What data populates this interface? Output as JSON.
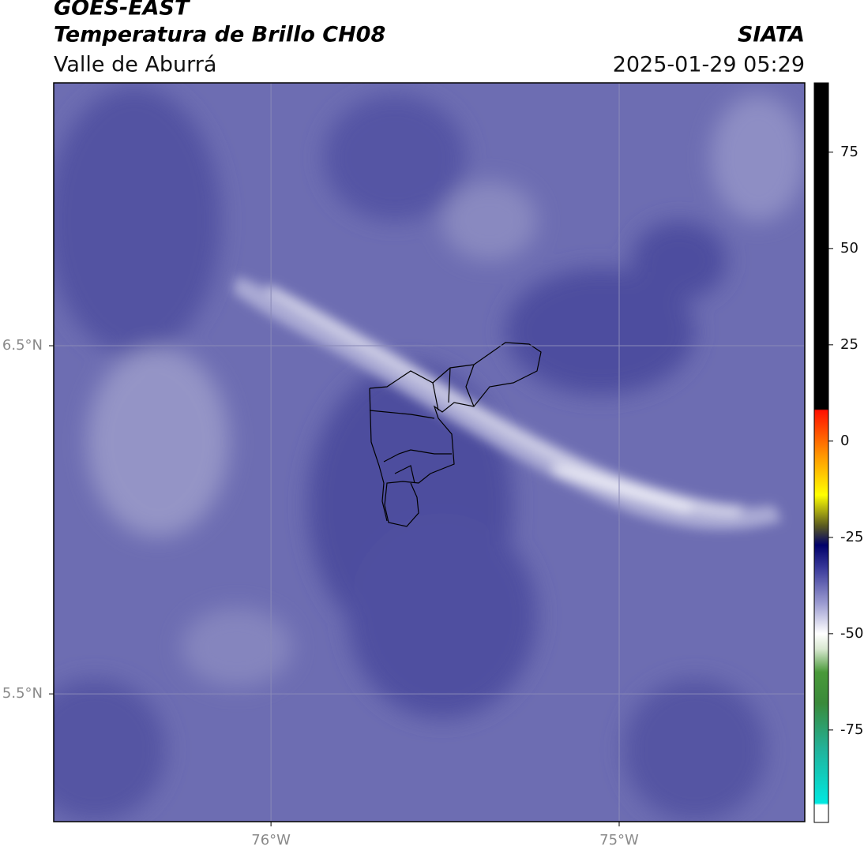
{
  "header": {
    "title": "GOES-EAST",
    "subtitle": "Temperatura de Brillo CH08",
    "region": "Valle de Aburrá",
    "source": "SIATA",
    "datetime": "2025-01-29 05:29"
  },
  "map": {
    "xlim": [
      -76.624,
      -74.467
    ],
    "ylim": [
      5.133,
      7.255
    ],
    "xticks": [
      {
        "value": -76,
        "label": "76°W"
      },
      {
        "value": -75,
        "label": "75°W"
      }
    ],
    "yticks": [
      {
        "value": 6.5,
        "label": "6.5°N"
      },
      {
        "value": 5.5,
        "label": "5.5°N"
      }
    ],
    "grid": true
  },
  "colorbar": {
    "lim": [
      -99,
      93
    ],
    "ticks": [
      75,
      50,
      25,
      0,
      -25,
      -50,
      -75
    ],
    "stops": [
      {
        "value": -99,
        "color": "#ffffff"
      },
      {
        "value": -94.5,
        "color": "#ffffff"
      },
      {
        "value": -94,
        "color": "#00e8e0"
      },
      {
        "value": -80,
        "color": "#22b29a"
      },
      {
        "value": -68,
        "color": "#3a8a3a"
      },
      {
        "value": -60,
        "color": "#4a9a3a"
      },
      {
        "value": -54,
        "color": "#d8e8d0"
      },
      {
        "value": -50,
        "color": "#ffffff"
      },
      {
        "value": -42,
        "color": "#9a9ad0"
      },
      {
        "value": -33,
        "color": "#3a3a9a"
      },
      {
        "value": -27,
        "color": "#00006a"
      },
      {
        "value": -22,
        "color": "#5a5a20"
      },
      {
        "value": -14,
        "color": "#ffff00"
      },
      {
        "value": -4,
        "color": "#ff9900"
      },
      {
        "value": 8,
        "color": "#ff1000"
      },
      {
        "value": 8.3,
        "color": "#000000"
      },
      {
        "value": 93,
        "color": "#000000"
      }
    ]
  }
}
